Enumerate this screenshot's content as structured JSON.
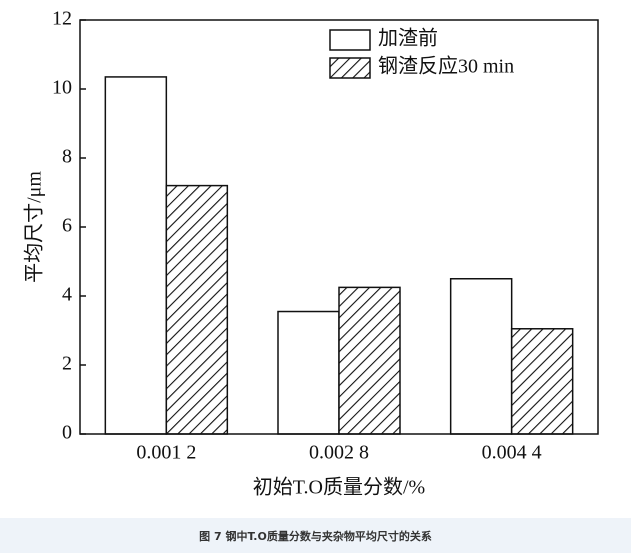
{
  "chart_data": {
    "type": "bar",
    "categories": [
      "0.001 2",
      "0.002 8",
      "0.004 4"
    ],
    "series": [
      {
        "name": "加渣前",
        "color": "#ffffff",
        "hatch": false,
        "values": [
          10.35,
          3.55,
          4.5
        ]
      },
      {
        "name": "钢渣反应30 min",
        "color": "#ffffff",
        "hatch": true,
        "values": [
          7.2,
          4.25,
          3.05
        ]
      }
    ],
    "ylim": [
      0,
      12
    ],
    "yticks": [
      0,
      2,
      4,
      6,
      8,
      10,
      12
    ],
    "x_label": "初始T.O质量分数/%",
    "y_label": "平均尺寸/μm",
    "legend": "upper-right",
    "grid": false
  },
  "caption": "图 7 钢中T.O质量分数与夹杂物平均尺寸的关系"
}
